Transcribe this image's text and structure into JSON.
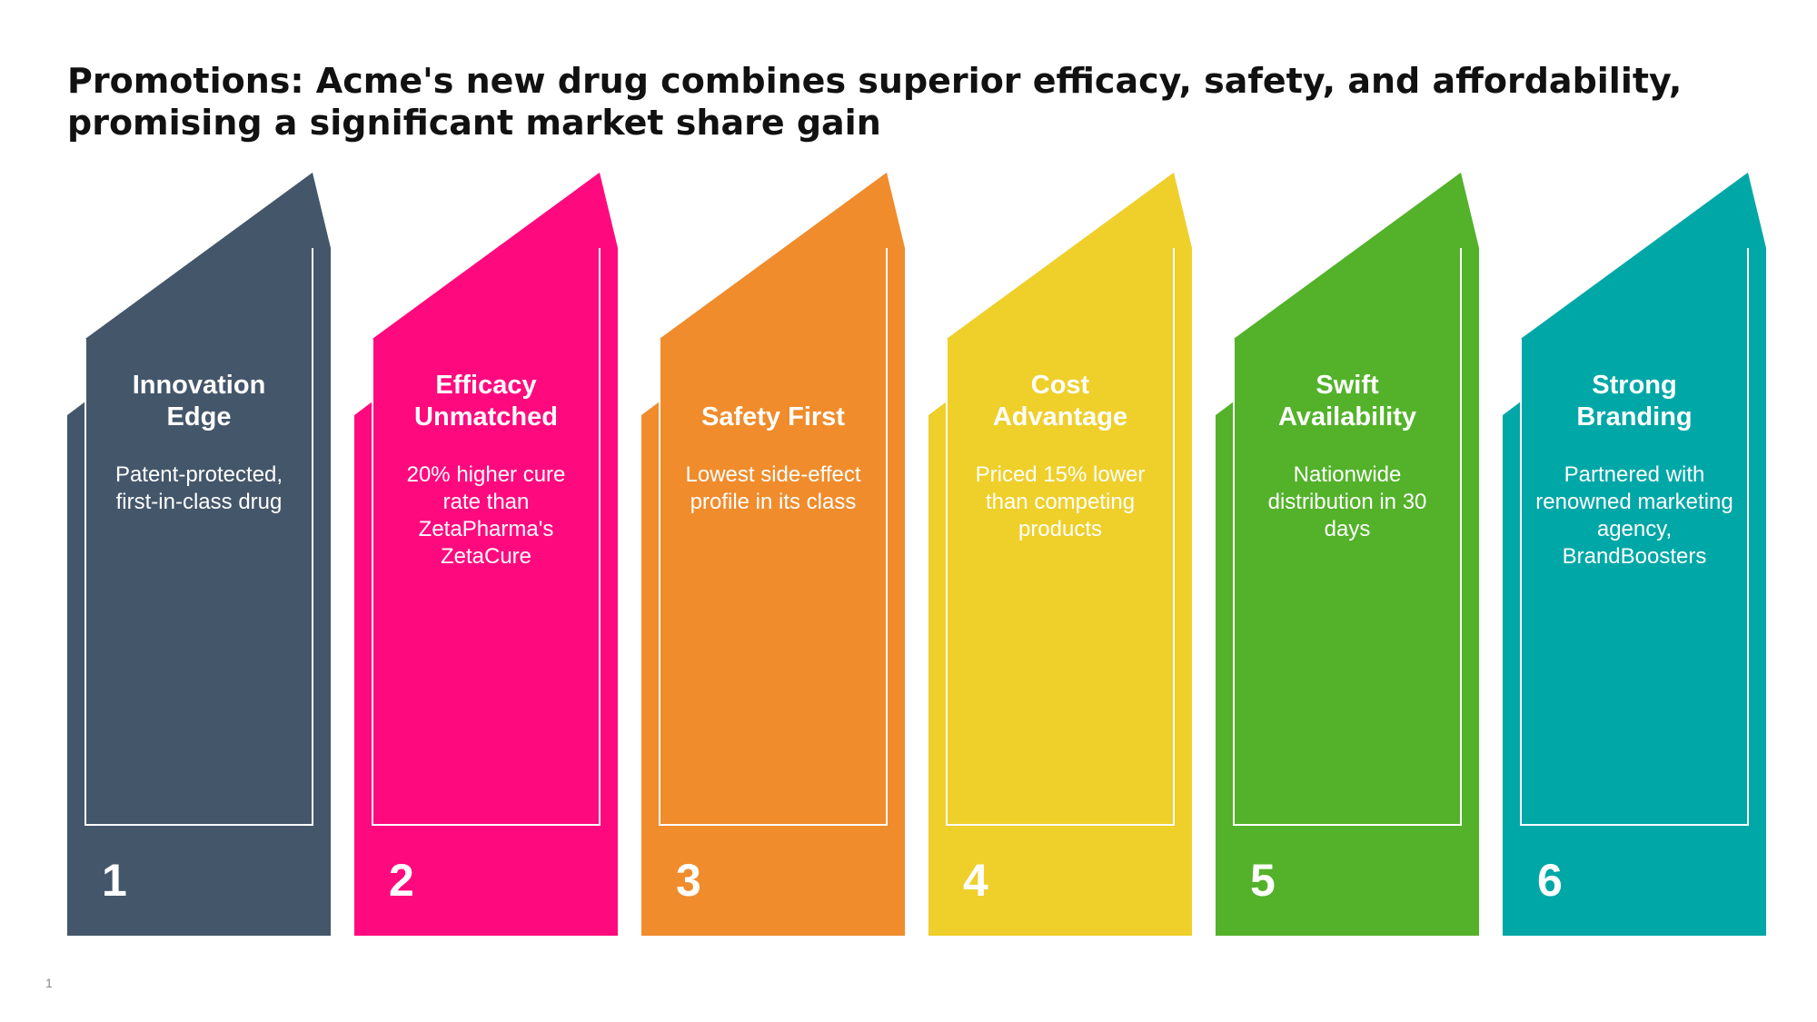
{
  "slide": {
    "title": "Promotions: Acme's new drug combines superior efficacy, safety, and affordability, promising a significant market share gain",
    "page_number": "1"
  },
  "cards": [
    {
      "number": "1",
      "heading": "Innovation\nEdge",
      "body": "Patent-protected, first-in-class drug",
      "color": "#44566A"
    },
    {
      "number": "2",
      "heading": "Efficacy\nUnmatched",
      "body": "20% higher cure rate than ZetaPharma's ZetaCure",
      "color": "#FF0A7E"
    },
    {
      "number": "3",
      "heading": "Safety First",
      "body": "Lowest side-effect profile in its class",
      "color": "#F08C2C"
    },
    {
      "number": "4",
      "heading": "Cost\nAdvantage",
      "body": "Priced 15% lower than competing products",
      "color": "#EFCF2A"
    },
    {
      "number": "5",
      "heading": "Swift\nAvailability",
      "body": "Nationwide distribution in 30 days",
      "color": "#53B22A"
    },
    {
      "number": "6",
      "heading": "Strong\nBranding",
      "body": "Partnered with renowned marketing agency, BrandBoosters",
      "color": "#00A7A7"
    }
  ]
}
